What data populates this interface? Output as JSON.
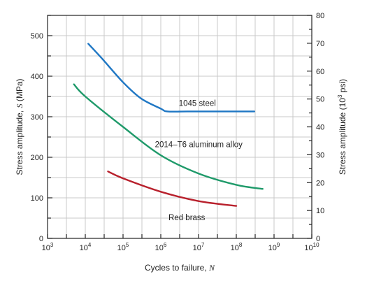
{
  "chart_data": {
    "type": "line",
    "xscale": "log",
    "xlim": [
      1000,
      10000000000
    ],
    "ylim": [
      0,
      550
    ],
    "y2lim": [
      0,
      80
    ],
    "grid": true,
    "xlabel": "Cycles to failure, N",
    "ylabel": "Stress amplitude, S (MPa)",
    "y2label": "Stress amplitude (10³ psi)",
    "x_ticks": [
      {
        "value": 1000,
        "base": "10",
        "exp": "3"
      },
      {
        "value": 10000,
        "base": "10",
        "exp": "4"
      },
      {
        "value": 100000,
        "base": "10",
        "exp": "5"
      },
      {
        "value": 1000000,
        "base": "10",
        "exp": "6"
      },
      {
        "value": 10000000,
        "base": "10",
        "exp": "7"
      },
      {
        "value": 100000000,
        "base": "10",
        "exp": "8"
      },
      {
        "value": 1000000000,
        "base": "10",
        "exp": "9"
      },
      {
        "value": 10000000000,
        "base": "10",
        "exp": "10"
      }
    ],
    "y_ticks": [
      "0",
      "100",
      "200",
      "300",
      "400",
      "500"
    ],
    "y2_ticks": [
      "0",
      "10",
      "20",
      "30",
      "40",
      "50",
      "60",
      "70",
      "80"
    ],
    "series": [
      {
        "name": "1045 steel",
        "color": "#1f77c4",
        "x": [
          12000,
          30000,
          100000,
          300000,
          1000000,
          1500000,
          5000000,
          30000000,
          300000000
        ],
        "y": [
          480,
          440,
          385,
          345,
          320,
          313,
          313,
          313,
          313
        ]
      },
      {
        "name": "2014–T6 aluminum alloy",
        "color": "#1f9a6a",
        "x": [
          5000,
          10000,
          100000,
          1000000,
          10000000,
          100000000,
          500000000
        ],
        "y": [
          380,
          350,
          275,
          205,
          160,
          132,
          122
        ]
      },
      {
        "name": "Red brass",
        "color": "#b8202c",
        "x": [
          40000,
          100000,
          1000000,
          10000000,
          100000000
        ],
        "y": [
          165,
          148,
          115,
          92,
          80
        ]
      }
    ]
  }
}
